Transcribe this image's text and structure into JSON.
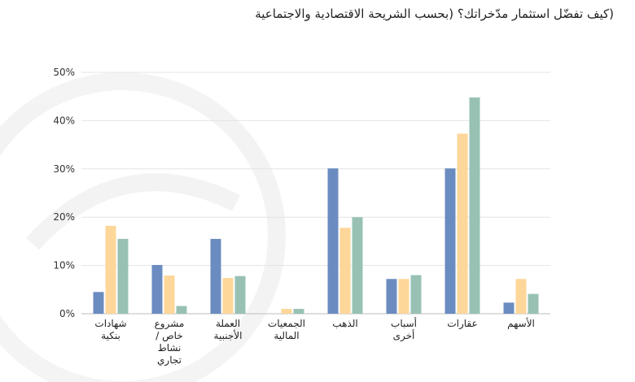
{
  "chart_data": {
    "type": "bar",
    "title": "(كيف تفضّل استثمار مدّخراتك؟ (بحسب الشريحة الاقتصادية والاجتماعية",
    "categories": [
      [
        "شهادات",
        "بنكية"
      ],
      [
        "مشروع",
        "خاص /",
        "نشاط",
        "تجاري"
      ],
      [
        "العملة",
        "الأجنبية"
      ],
      [
        "الجمعيات",
        "المالية"
      ],
      [
        "الذهب"
      ],
      [
        "أسباب",
        "أخرى"
      ],
      [
        "عقارات"
      ],
      [
        "الأسهم"
      ]
    ],
    "series": [
      {
        "color": "#6b8cc0",
        "values": [
          4.5,
          10.1,
          15.5,
          0,
          30.1,
          7.2,
          30.1,
          2.3
        ]
      },
      {
        "color": "#fdd699",
        "values": [
          18.2,
          7.9,
          7.4,
          1.0,
          17.8,
          7.2,
          37.3,
          7.2
        ]
      },
      {
        "color": "#98c1b4",
        "values": [
          15.5,
          1.6,
          7.8,
          1.0,
          20.0,
          8.0,
          44.8,
          4.1
        ]
      }
    ],
    "yticks": [
      "0%",
      "10%",
      "20%",
      "30%",
      "40%",
      "50%"
    ],
    "ylim": [
      0,
      50
    ],
    "grid": true,
    "legend": "none"
  }
}
